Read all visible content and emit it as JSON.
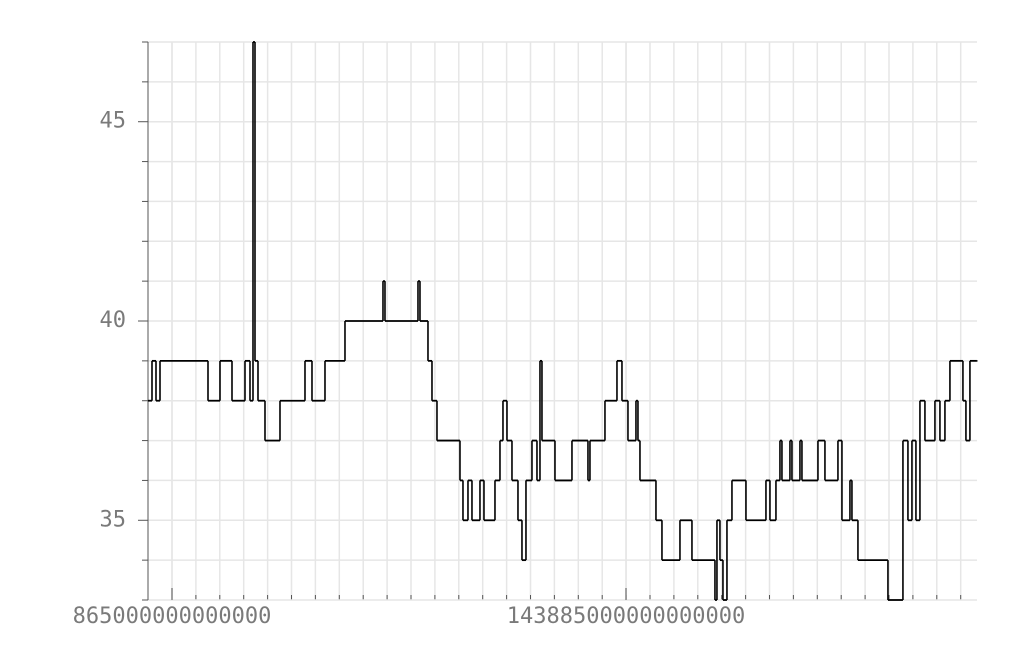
{
  "chart_data": {
    "type": "line",
    "interpolation": "step",
    "color": "#000000",
    "grid": true,
    "xlim": [
      -6695000000000000.0,
      2.5446e+17
    ],
    "ylim": [
      33,
      47
    ],
    "xticks": [
      865000000000000,
      143885000000000000
    ],
    "yticks": [
      35,
      40,
      45
    ],
    "y_minor_ticks": [
      33,
      34,
      36,
      37,
      38,
      39,
      41,
      42,
      43,
      44,
      46,
      47
    ],
    "x": [
      -6695000000000000.0,
      -5435000000000000.0,
      -4175000000000000.0,
      -2915000000000000.0,
      1.2205e+16,
      1.5985e+16,
      1.9765e+16,
      2.386e+16,
      2.5435e+16,
      2.638e+16,
      2.701e+16,
      2.7955e+16,
      3.016e+16,
      3.4885e+16,
      4.276e+16,
      4.4965e+16,
      4.906e+16,
      5.536e+16,
      6.733e+16,
      6.796e+16,
      7.8355e+16,
      7.8985e+16,
      8.1505e+16,
      8.2765e+16,
      8.434e+16,
      9.1585e+16,
      9.253e+16,
      9.4105e+16,
      9.5365e+16,
      9.7885e+16,
      9.9145e+16,
      1.0261e+17,
      1.04185e+17,
      1.0513e+17,
      1.0639e+17,
      1.07965e+17,
      1.09855e+17,
      1.11115e+17,
      1.12375e+17,
      1.14265e+17,
      1.1584e+17,
      1.16785e+17,
      1.17415e+17,
      1.2151e+17,
      1.26865e+17,
      1.31905e+17,
      1.32535e+17,
      1.3726e+17,
      1.4104e+17,
      1.42615e+17,
      1.44505e+17,
      1.47025e+17,
      1.47655e+17,
      1.48285e+17,
      1.53325e+17,
      1.55215e+17,
      1.60885e+17,
      1.64665e+17,
      1.7191e+17,
      1.7254e+17,
      1.73485e+17,
      1.7443e+17,
      1.7569e+17,
      1.77265e+17,
      1.81675e+17,
      1.87975e+17,
      1.89235e+17,
      1.91125e+17,
      1.92385e+17,
      1.93015e+17,
      1.95535e+17,
      1.96165e+17,
      1.98685e+17,
      1.99315e+17,
      2.04355e+17,
      2.0656e+17,
      2.10655e+17,
      2.11915e+17,
      2.14435e+17,
      2.15065e+17,
      2.16955e+17,
      2.26405e+17,
      2.3113e+17,
      2.32705e+17,
      2.33965e+17,
      2.35225e+17,
      2.36485e+17,
      2.3806e+17,
      2.4121e+17,
      2.42785e+17,
      2.4436e+17,
      2.45935e+17,
      2.5003e+17,
      2.50975e+17,
      2.52235e+17,
      2.5444e+17
    ],
    "values": [
      38,
      39,
      38,
      39,
      38,
      39,
      38,
      39,
      38,
      47,
      39,
      38,
      37,
      38,
      39,
      38,
      39,
      40,
      41,
      40,
      41,
      40,
      39,
      38,
      37,
      36,
      35,
      36,
      35,
      36,
      35,
      36,
      37,
      38,
      37,
      36,
      35,
      34,
      36,
      37,
      36,
      39,
      37,
      36,
      37,
      36,
      37,
      38,
      39,
      38,
      37,
      38,
      37,
      36,
      35,
      34,
      35,
      34,
      33,
      35,
      34,
      33,
      35,
      36,
      35,
      36,
      35,
      36,
      37,
      36,
      37,
      36,
      37,
      36,
      37,
      36,
      37,
      35,
      36,
      35,
      34,
      33,
      37,
      35,
      37,
      35,
      38,
      37,
      38,
      37,
      38,
      39,
      38,
      37,
      39,
      39
    ]
  }
}
